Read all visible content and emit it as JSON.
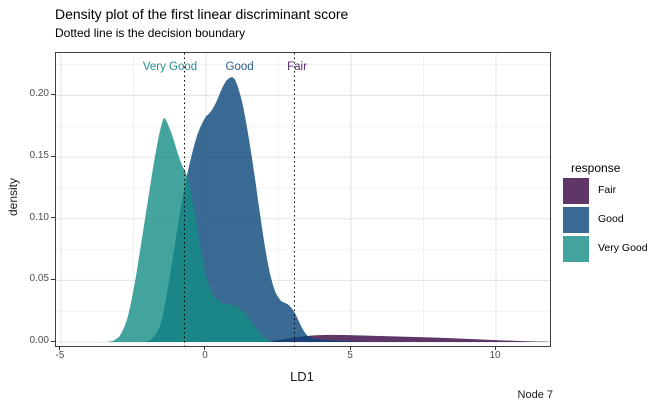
{
  "chart_data": {
    "type": "area",
    "title": "Density plot of the first linear discriminant score",
    "subtitle": "Dotted line is the decision boundary",
    "xlabel": "LD1",
    "ylabel": "density",
    "x_domain": [
      -5.17,
      11.86
    ],
    "y_domain": [
      -0.0032,
      0.2344
    ],
    "grid": "on",
    "legend_position": "right",
    "legend_title": "response",
    "fill_opacity": 0.8,
    "x_ticks": [
      {
        "v": -5,
        "label": "-5"
      },
      {
        "v": 0,
        "label": "0"
      },
      {
        "v": 5,
        "label": "5"
      },
      {
        "v": 10,
        "label": "10"
      }
    ],
    "y_ticks": [
      {
        "v": 0.0,
        "label": "0.00"
      },
      {
        "v": 0.05,
        "label": "0.05"
      },
      {
        "v": 0.1,
        "label": "0.10"
      },
      {
        "v": 0.15,
        "label": "0.15"
      },
      {
        "v": 0.2,
        "label": "0.20"
      }
    ],
    "x_minor_gridlines": [
      -2.5,
      2.5,
      7.5
    ],
    "y_minor_gridlines": [
      0.025,
      0.075,
      0.125,
      0.175,
      0.225
    ],
    "decision_boundaries_x": [
      -0.74,
      3.05
    ],
    "series": [
      {
        "name": "Fair",
        "fill": "#360442",
        "points": [
          [
            1.8,
            0
          ],
          [
            2.2,
            0.0008
          ],
          [
            2.6,
            0.002
          ],
          [
            3.0,
            0.0035
          ],
          [
            3.4,
            0.0048
          ],
          [
            3.8,
            0.0055
          ],
          [
            4.2,
            0.0058
          ],
          [
            4.8,
            0.0057
          ],
          [
            5.4,
            0.0053
          ],
          [
            6.0,
            0.0049
          ],
          [
            6.6,
            0.0045
          ],
          [
            7.2,
            0.0041
          ],
          [
            7.8,
            0.0037
          ],
          [
            8.4,
            0.0032
          ],
          [
            9.0,
            0.0026
          ],
          [
            9.6,
            0.002
          ],
          [
            10.2,
            0.0014
          ],
          [
            10.8,
            0.0009
          ],
          [
            11.4,
            0.0004
          ],
          [
            11.85,
            0.0002
          ]
        ]
      },
      {
        "name": "Good",
        "fill": "#094679",
        "points": [
          [
            -2.1,
            0
          ],
          [
            -1.9,
            0.002
          ],
          [
            -1.7,
            0.007
          ],
          [
            -1.6,
            0.012
          ],
          [
            -1.5,
            0.02
          ],
          [
            -1.4,
            0.032
          ],
          [
            -1.3,
            0.046
          ],
          [
            -1.2,
            0.06
          ],
          [
            -1.1,
            0.075
          ],
          [
            -1.0,
            0.09
          ],
          [
            -0.9,
            0.105
          ],
          [
            -0.8,
            0.118
          ],
          [
            -0.7,
            0.13
          ],
          [
            -0.6,
            0.141
          ],
          [
            -0.5,
            0.151
          ],
          [
            -0.4,
            0.16
          ],
          [
            -0.3,
            0.168
          ],
          [
            -0.2,
            0.174
          ],
          [
            -0.1,
            0.179
          ],
          [
            0.0,
            0.183
          ],
          [
            0.1,
            0.185
          ],
          [
            0.2,
            0.188
          ],
          [
            0.3,
            0.192
          ],
          [
            0.4,
            0.197
          ],
          [
            0.5,
            0.203
          ],
          [
            0.6,
            0.208
          ],
          [
            0.7,
            0.212
          ],
          [
            0.8,
            0.214
          ],
          [
            0.9,
            0.215
          ],
          [
            1.0,
            0.213
          ],
          [
            1.1,
            0.207
          ],
          [
            1.2,
            0.199
          ],
          [
            1.3,
            0.189
          ],
          [
            1.4,
            0.176
          ],
          [
            1.5,
            0.162
          ],
          [
            1.6,
            0.147
          ],
          [
            1.7,
            0.131
          ],
          [
            1.8,
            0.114
          ],
          [
            1.9,
            0.098
          ],
          [
            2.0,
            0.082
          ],
          [
            2.1,
            0.068
          ],
          [
            2.2,
            0.056
          ],
          [
            2.3,
            0.047
          ],
          [
            2.4,
            0.04
          ],
          [
            2.5,
            0.036
          ],
          [
            2.6,
            0.033
          ],
          [
            2.7,
            0.032
          ],
          [
            2.8,
            0.031
          ],
          [
            2.9,
            0.029
          ],
          [
            3.0,
            0.026
          ],
          [
            3.1,
            0.022
          ],
          [
            3.2,
            0.017
          ],
          [
            3.3,
            0.012
          ],
          [
            3.4,
            0.008
          ],
          [
            3.5,
            0.005
          ],
          [
            3.7,
            0.003
          ],
          [
            4.0,
            0.002
          ],
          [
            4.5,
            0.0012
          ],
          [
            5.0,
            0.0006
          ],
          [
            5.5,
            0
          ]
        ]
      },
      {
        "name": "Very Good",
        "fill": "#138D83",
        "points": [
          [
            -3.4,
            0
          ],
          [
            -3.2,
            0.001
          ],
          [
            -3.0,
            0.004
          ],
          [
            -2.9,
            0.008
          ],
          [
            -2.8,
            0.013
          ],
          [
            -2.7,
            0.02
          ],
          [
            -2.6,
            0.03
          ],
          [
            -2.5,
            0.042
          ],
          [
            -2.4,
            0.055
          ],
          [
            -2.3,
            0.07
          ],
          [
            -2.2,
            0.085
          ],
          [
            -2.1,
            0.1
          ],
          [
            -2.0,
            0.115
          ],
          [
            -1.9,
            0.13
          ],
          [
            -1.8,
            0.145
          ],
          [
            -1.7,
            0.158
          ],
          [
            -1.6,
            0.17
          ],
          [
            -1.5,
            0.179
          ],
          [
            -1.45,
            0.182
          ],
          [
            -1.4,
            0.181
          ],
          [
            -1.3,
            0.176
          ],
          [
            -1.2,
            0.17
          ],
          [
            -1.1,
            0.163
          ],
          [
            -1.0,
            0.155
          ],
          [
            -0.9,
            0.148
          ],
          [
            -0.8,
            0.142
          ],
          [
            -0.7,
            0.138
          ],
          [
            -0.6,
            0.13
          ],
          [
            -0.5,
            0.119
          ],
          [
            -0.4,
            0.106
          ],
          [
            -0.3,
            0.092
          ],
          [
            -0.2,
            0.078
          ],
          [
            -0.1,
            0.065
          ],
          [
            0.0,
            0.054
          ],
          [
            0.1,
            0.046
          ],
          [
            0.2,
            0.04
          ],
          [
            0.3,
            0.036
          ],
          [
            0.4,
            0.034
          ],
          [
            0.5,
            0.032
          ],
          [
            0.7,
            0.031
          ],
          [
            0.9,
            0.03
          ],
          [
            1.1,
            0.028
          ],
          [
            1.3,
            0.024
          ],
          [
            1.5,
            0.019
          ],
          [
            1.7,
            0.012
          ],
          [
            1.9,
            0.006
          ],
          [
            2.1,
            0.002
          ],
          [
            2.3,
            0
          ]
        ]
      }
    ],
    "annotations": [
      {
        "text": "Very Good",
        "x": -1.24,
        "color": "#21908C"
      },
      {
        "text": "Good",
        "x": 1.16,
        "color": "#2C5F87"
      },
      {
        "text": "Fair",
        "x": 3.14,
        "color": "#5B2C6E"
      }
    ]
  },
  "legend": {
    "title": "response",
    "items": [
      {
        "label": "Fair",
        "fill": "#360442"
      },
      {
        "label": "Good",
        "fill": "#094679"
      },
      {
        "label": "Very Good",
        "fill": "#138D83"
      }
    ]
  },
  "footer": {
    "node_label": "Node 7"
  },
  "colors": {
    "panel_border": "#404040",
    "gridline_major": "#E3E3E3",
    "gridline_minor": "#F2F2F2",
    "axis_text": "#4d4d4d",
    "boundary_line": "#000000",
    "background": "#FFFFFF"
  }
}
